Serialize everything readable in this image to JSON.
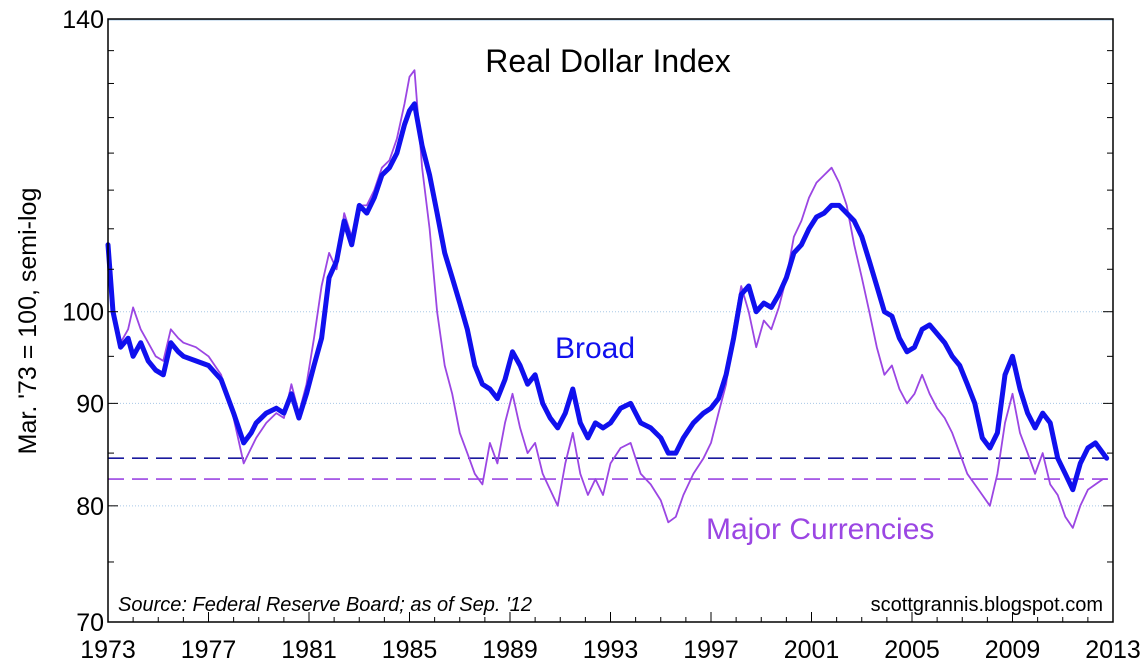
{
  "chart_data": {
    "type": "line",
    "title": "Real Dollar Index",
    "ylabel": "Mar. '73 = 100, semi-log",
    "xlabel": "",
    "y_scale": "log",
    "ylim": [
      70,
      140
    ],
    "xlim": [
      1973,
      2013
    ],
    "grid": true,
    "y_ticks": [
      70,
      80,
      90,
      100,
      140
    ],
    "x_ticks": [
      1973,
      1977,
      1981,
      1985,
      1989,
      1993,
      1997,
      2001,
      2005,
      2009,
      2013
    ],
    "y_tick_labels": [
      "70",
      "80",
      "90",
      "100",
      "140"
    ],
    "x_tick_labels": [
      "1973",
      "1977",
      "1981",
      "1985",
      "1989",
      "1993",
      "1997",
      "2001",
      "2005",
      "2009",
      "2013"
    ],
    "source_note": "Source: Federal Reserve Board; as of Sep. '12",
    "credit": "scottgrannis.blogspot.com",
    "reference_lines": [
      {
        "series": "Broad",
        "value": 84.5,
        "style": "dashed"
      },
      {
        "series": "Major Currencies",
        "value": 82.5,
        "style": "dashed"
      }
    ],
    "series": [
      {
        "name": "Broad",
        "color": "#1010ee",
        "x": [
          1973.0,
          1973.2,
          1973.5,
          1973.8,
          1974.0,
          1974.3,
          1974.6,
          1974.9,
          1975.2,
          1975.5,
          1975.8,
          1976.0,
          1976.5,
          1977.0,
          1977.5,
          1978.0,
          1978.4,
          1978.7,
          1978.9,
          1979.3,
          1979.7,
          1980.0,
          1980.3,
          1980.6,
          1980.9,
          1981.2,
          1981.5,
          1981.8,
          1982.1,
          1982.4,
          1982.7,
          1983.0,
          1983.3,
          1983.6,
          1983.9,
          1984.2,
          1984.5,
          1984.8,
          1985.0,
          1985.2,
          1985.5,
          1985.8,
          1986.1,
          1986.4,
          1986.7,
          1987.0,
          1987.3,
          1987.6,
          1987.9,
          1988.2,
          1988.5,
          1988.8,
          1989.1,
          1989.4,
          1989.7,
          1990.0,
          1990.3,
          1990.6,
          1990.9,
          1991.2,
          1991.5,
          1991.8,
          1992.1,
          1992.4,
          1992.7,
          1993.0,
          1993.4,
          1993.8,
          1994.2,
          1994.6,
          1995.0,
          1995.3,
          1995.6,
          1995.9,
          1996.3,
          1996.7,
          1997.0,
          1997.3,
          1997.6,
          1997.9,
          1998.2,
          1998.5,
          1998.8,
          1999.1,
          1999.4,
          1999.7,
          2000.0,
          2000.3,
          2000.6,
          2000.9,
          2001.2,
          2001.5,
          2001.8,
          2002.1,
          2002.4,
          2002.7,
          2003.0,
          2003.3,
          2003.6,
          2003.9,
          2004.2,
          2004.5,
          2004.8,
          2005.1,
          2005.4,
          2005.7,
          2006.0,
          2006.3,
          2006.6,
          2006.9,
          2007.2,
          2007.5,
          2007.8,
          2008.1,
          2008.4,
          2008.7,
          2009.0,
          2009.3,
          2009.6,
          2009.9,
          2010.2,
          2010.5,
          2010.8,
          2011.1,
          2011.4,
          2011.7,
          2012.0,
          2012.3,
          2012.6,
          2012.75
        ],
        "values": [
          108,
          100,
          96,
          97,
          95,
          96.5,
          94.5,
          93.5,
          93,
          96.5,
          95.5,
          95,
          94.5,
          94,
          92.5,
          89,
          86,
          87,
          88,
          89,
          89.5,
          89,
          91,
          88.5,
          91,
          94,
          97,
          104,
          106,
          111,
          108,
          113,
          112,
          114,
          117,
          118,
          120,
          124,
          126,
          127,
          121,
          117,
          112,
          107,
          104,
          101,
          98,
          94,
          92,
          91.5,
          90.5,
          92.5,
          95.5,
          94,
          92,
          93,
          90,
          88.5,
          87.5,
          89,
          91.5,
          88,
          86.5,
          88,
          87.5,
          88,
          89.5,
          90,
          88,
          87.5,
          86.5,
          85,
          85,
          86.5,
          88,
          89,
          89.5,
          90.5,
          93,
          97,
          102,
          103,
          100,
          101,
          100.5,
          102,
          104,
          107,
          108,
          110,
          111.5,
          112,
          113,
          113,
          112,
          111,
          109,
          106,
          103,
          100,
          99.5,
          97,
          95.5,
          96,
          98,
          98.5,
          97.5,
          96.5,
          95,
          94,
          92,
          90,
          86.5,
          85.5,
          87,
          93,
          95,
          91.5,
          89,
          87.5,
          89,
          88,
          84.5,
          83,
          81.5,
          84,
          85.5,
          86,
          85,
          84.5
        ]
      },
      {
        "name": "Major Currencies",
        "color": "#9b46e3",
        "x": [
          1973.0,
          1973.2,
          1973.5,
          1973.8,
          1974.0,
          1974.3,
          1974.6,
          1974.9,
          1975.2,
          1975.5,
          1975.8,
          1976.0,
          1976.5,
          1977.0,
          1977.5,
          1978.0,
          1978.4,
          1978.7,
          1978.9,
          1979.3,
          1979.7,
          1980.0,
          1980.3,
          1980.6,
          1980.9,
          1981.2,
          1981.5,
          1981.8,
          1982.1,
          1982.4,
          1982.7,
          1983.0,
          1983.3,
          1983.6,
          1983.9,
          1984.2,
          1984.5,
          1984.8,
          1985.0,
          1985.2,
          1985.5,
          1985.8,
          1986.1,
          1986.4,
          1986.7,
          1987.0,
          1987.3,
          1987.6,
          1987.9,
          1988.2,
          1988.5,
          1988.8,
          1989.1,
          1989.4,
          1989.7,
          1990.0,
          1990.3,
          1990.6,
          1990.9,
          1991.2,
          1991.5,
          1991.8,
          1992.1,
          1992.4,
          1992.7,
          1993.0,
          1993.4,
          1993.8,
          1994.2,
          1994.6,
          1995.0,
          1995.3,
          1995.6,
          1995.9,
          1996.3,
          1996.7,
          1997.0,
          1997.3,
          1997.6,
          1997.9,
          1998.2,
          1998.5,
          1998.8,
          1999.1,
          1999.4,
          1999.7,
          2000.0,
          2000.3,
          2000.6,
          2000.9,
          2001.2,
          2001.5,
          2001.8,
          2002.1,
          2002.4,
          2002.7,
          2003.0,
          2003.3,
          2003.6,
          2003.9,
          2004.2,
          2004.5,
          2004.8,
          2005.1,
          2005.4,
          2005.7,
          2006.0,
          2006.3,
          2006.6,
          2006.9,
          2007.2,
          2007.5,
          2007.8,
          2008.1,
          2008.4,
          2008.7,
          2009.0,
          2009.3,
          2009.6,
          2009.9,
          2010.2,
          2010.5,
          2010.8,
          2011.1,
          2011.4,
          2011.7,
          2012.0,
          2012.3,
          2012.6,
          2012.75
        ],
        "values": [
          106,
          100,
          96.5,
          98,
          100.5,
          98,
          96.5,
          95,
          94.5,
          98,
          97,
          96.5,
          96,
          95,
          93,
          88.5,
          84,
          85.5,
          86.5,
          88,
          89,
          88.5,
          92,
          89,
          92,
          97,
          103,
          107,
          105,
          112,
          109,
          113,
          113,
          115,
          118,
          119,
          122,
          127,
          131,
          132,
          118,
          110,
          100,
          94,
          91,
          87,
          85,
          83,
          82,
          86,
          84,
          88,
          91,
          87.5,
          85,
          86,
          83,
          81.5,
          80,
          84,
          87,
          83,
          81,
          82.5,
          81,
          84,
          85.5,
          86,
          83,
          82,
          80.5,
          78.5,
          79,
          81,
          83,
          84.5,
          86,
          89,
          92,
          98,
          103,
          100,
          96,
          99,
          98,
          100.5,
          104,
          109,
          111,
          114,
          116,
          117,
          118,
          116,
          113,
          108,
          104,
          100,
          96,
          93,
          94,
          91.5,
          90,
          91,
          93,
          91,
          89.5,
          88.5,
          87,
          85,
          83,
          82,
          81,
          80,
          83,
          88,
          91,
          87,
          85,
          83,
          85,
          82,
          81,
          79,
          78,
          80,
          81.5,
          82,
          82.5,
          82.5
        ]
      }
    ]
  }
}
